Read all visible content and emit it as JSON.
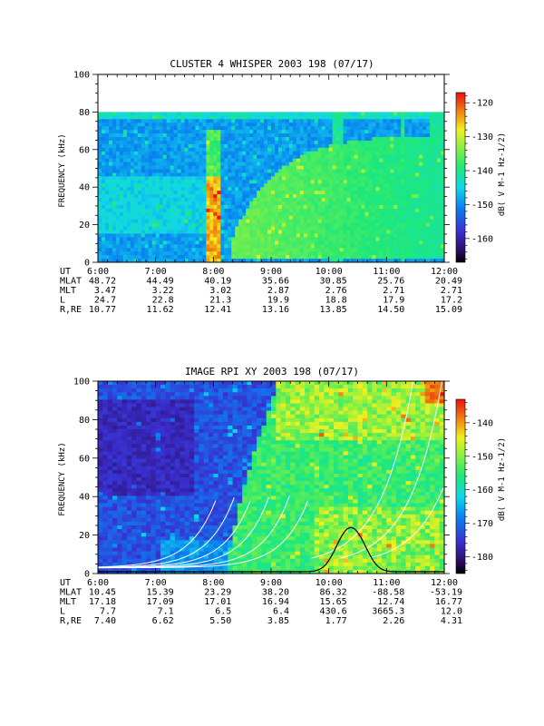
{
  "chart_data": [
    {
      "type": "heatmap",
      "title": "CLUSTER 4 WHISPER 2003 198 (07/17)",
      "ylabel": "FREQUENCY (kHz)",
      "ylim": [
        0,
        100
      ],
      "yticks": [
        "0",
        "20",
        "40",
        "60",
        "80",
        "100"
      ],
      "colorbar": {
        "label": "dB( V M⁻¹ Hz⁻¹ᐟ²)",
        "label_plain": "dB( V M-1 Hz-1/2)",
        "range": [
          -167,
          -117
        ],
        "ticks": [
          "-120",
          "-130",
          "-140",
          "-150",
          "-160"
        ]
      },
      "data_ceiling_khz": 80,
      "ephemeris": {
        "row_labels": [
          "UT",
          "MLAT",
          "MLT",
          "L",
          "R,RE"
        ],
        "columns": [
          {
            "UT": "6:00",
            "MLAT": "48.72",
            "MLT": "3.47",
            "L": "24.7",
            "R,RE": "10.77"
          },
          {
            "UT": "7:00",
            "MLAT": "44.49",
            "MLT": "3.22",
            "L": "22.8",
            "R,RE": "11.62"
          },
          {
            "UT": "8:00",
            "MLAT": "40.19",
            "MLT": "3.02",
            "L": "21.3",
            "R,RE": "12.41"
          },
          {
            "UT": "9:00",
            "MLAT": "35.66",
            "MLT": "2.87",
            "L": "19.9",
            "R,RE": "13.16"
          },
          {
            "UT": "10:00",
            "MLAT": "30.85",
            "MLT": "2.76",
            "L": "18.8",
            "R,RE": "13.85"
          },
          {
            "UT": "11:00",
            "MLAT": "25.76",
            "MLT": "2.71",
            "L": "17.9",
            "R,RE": "14.50"
          },
          {
            "UT": "12:00",
            "MLAT": "20.49",
            "MLT": "2.71",
            "L": "17.2",
            "R,RE": "15.09"
          }
        ]
      }
    },
    {
      "type": "heatmap",
      "title": "IMAGE RPI XY 2003 198 (07/17)",
      "ylabel": "FREQUENCY (kHz)",
      "ylim": [
        0,
        100
      ],
      "yticks": [
        "0",
        "20",
        "40",
        "60",
        "80",
        "100"
      ],
      "colorbar": {
        "label": "dB( V M⁻¹ Hz⁻¹ᐟ²)",
        "label_plain": "dB( V M-1 Hz-1/2)",
        "range": [
          -185,
          -133
        ],
        "ticks": [
          "-140",
          "-150",
          "-160",
          "-170",
          "-180"
        ]
      },
      "ephemeris": {
        "row_labels": [
          "UT",
          "MLAT",
          "MLT",
          "L",
          "R,RE"
        ],
        "columns": [
          {
            "UT": "6:00",
            "MLAT": "10.45",
            "MLT": "17.18",
            "L": "7.7",
            "R,RE": "7.40"
          },
          {
            "UT": "7:00",
            "MLAT": "15.39",
            "MLT": "17.09",
            "L": "7.1",
            "R,RE": "6.62"
          },
          {
            "UT": "8:00",
            "MLAT": "23.29",
            "MLT": "17.01",
            "L": "6.5",
            "R,RE": "5.50"
          },
          {
            "UT": "9:00",
            "MLAT": "38.20",
            "MLT": "16.94",
            "L": "6.4",
            "R,RE": "3.85"
          },
          {
            "UT": "10:00",
            "MLAT": "86.32",
            "MLT": "15.65",
            "L": "430.6",
            "R,RE": "1.77"
          },
          {
            "UT": "11:00",
            "MLAT": "-88.58",
            "MLT": "12.74",
            "L": "3665.3",
            "R,RE": "2.26"
          },
          {
            "UT": "12:00",
            "MLAT": "-53.19",
            "MLT": "16.77",
            "L": "12.0",
            "R,RE": "4.31"
          }
        ]
      }
    }
  ]
}
